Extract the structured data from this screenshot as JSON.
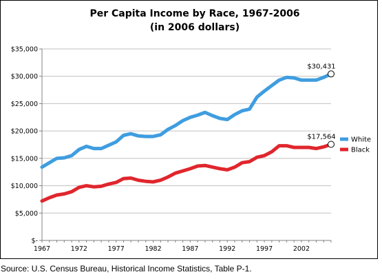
{
  "chart_data": {
    "type": "line",
    "title_lines": [
      "Per Capita Income by Race, 1967-2006",
      "(in 2006 dollars)"
    ],
    "xlabel": "",
    "ylabel": "",
    "x_tick_labels": [
      "1967",
      "1972",
      "1977",
      "1982",
      "1987",
      "1992",
      "1997",
      "2002"
    ],
    "y_tick_labels": [
      "$-",
      "$5,000",
      "$10,000",
      "$15,000",
      "$20,000",
      "$25,000",
      "$30,000",
      "$35,000"
    ],
    "xlim": [
      1967,
      2006
    ],
    "ylim": [
      0,
      35000
    ],
    "grid": "horizontal",
    "legend_position": "right",
    "x": [
      1967,
      1968,
      1969,
      1970,
      1971,
      1972,
      1973,
      1974,
      1975,
      1976,
      1977,
      1978,
      1979,
      1980,
      1981,
      1982,
      1983,
      1984,
      1985,
      1986,
      1987,
      1988,
      1989,
      1990,
      1991,
      1992,
      1993,
      1994,
      1995,
      1996,
      1997,
      1998,
      1999,
      2000,
      2001,
      2002,
      2003,
      2004,
      2005,
      2006
    ],
    "series": [
      {
        "name": "White",
        "color": "#3f9de0",
        "end_label": "$30,431",
        "values": [
          13400,
          14200,
          15000,
          15100,
          15500,
          16600,
          17200,
          16800,
          16800,
          17400,
          18000,
          19200,
          19500,
          19100,
          19000,
          19000,
          19300,
          20300,
          21000,
          21900,
          22500,
          22900,
          23400,
          22800,
          22300,
          22100,
          23000,
          23700,
          24000,
          26200,
          27300,
          28300,
          29300,
          29800,
          29700,
          29300,
          29300,
          29300,
          29800,
          30431
        ]
      },
      {
        "name": "Black",
        "color": "#e0262d",
        "end_label": "$17,564",
        "values": [
          7200,
          7800,
          8300,
          8500,
          8900,
          9700,
          10000,
          9800,
          9900,
          10300,
          10600,
          11300,
          11400,
          11000,
          10800,
          10700,
          11000,
          11600,
          12300,
          12700,
          13100,
          13600,
          13700,
          13400,
          13100,
          12900,
          13400,
          14200,
          14400,
          15200,
          15500,
          16200,
          17300,
          17300,
          17000,
          17000,
          17000,
          16800,
          17100,
          17564
        ]
      }
    ]
  },
  "source_note": "Source: U.S. Census Bureau, Historical Income Statistics, Table P-1."
}
